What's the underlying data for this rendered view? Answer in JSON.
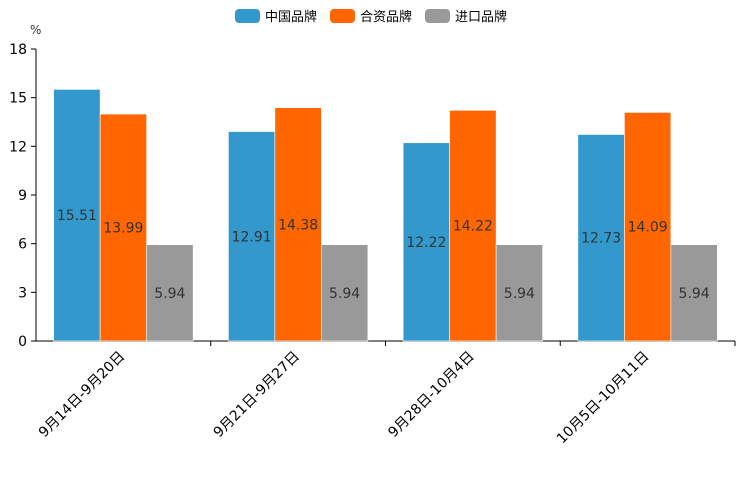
{
  "chart_data": {
    "type": "bar",
    "title": "",
    "xlabel": "",
    "ylabel": "%",
    "ylim": [
      0,
      18
    ],
    "yticks": [
      0,
      3,
      6,
      9,
      12,
      15,
      18
    ],
    "categories": [
      "9月14日-9月20日",
      "9月21日-9月27日",
      "9月28日-10月4日",
      "10月5日-10月11日"
    ],
    "series": [
      {
        "name": "中国品牌",
        "color": "#3399CC",
        "values": [
          15.51,
          12.91,
          12.22,
          12.73
        ],
        "labels": [
          "15.51",
          "12.91",
          "12.22",
          "12.73"
        ]
      },
      {
        "name": "合资品牌",
        "color": "#FF6600",
        "values": [
          13.99,
          14.38,
          14.22,
          14.09
        ],
        "labels": [
          "13.99",
          "14.38",
          "14.22",
          "14.09"
        ]
      },
      {
        "name": "进口品牌",
        "color": "#999999",
        "values": [
          5.94,
          5.94,
          5.94,
          5.94
        ],
        "labels": [
          "5.94",
          "5.94",
          "5.94",
          "5.94"
        ]
      }
    ],
    "legend": "top-center",
    "grid": false
  }
}
